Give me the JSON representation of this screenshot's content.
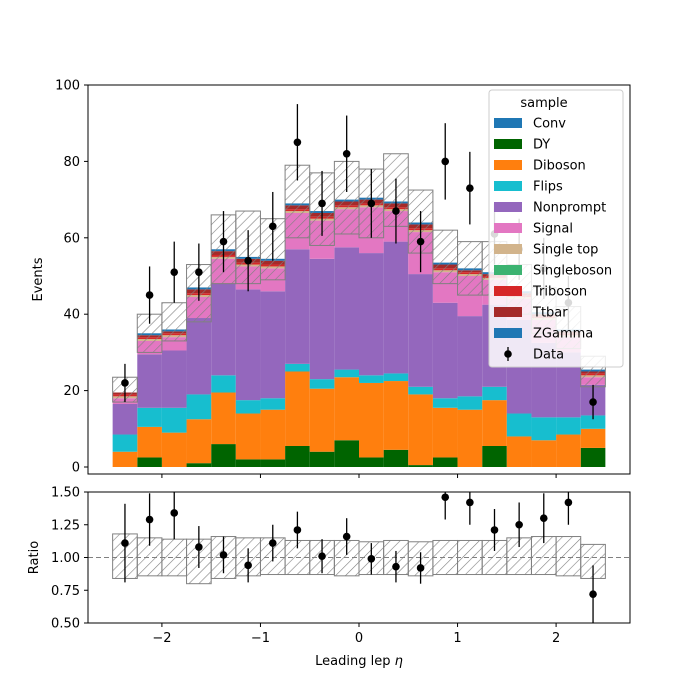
{
  "chart_data": [
    {
      "type": "stacked-histogram",
      "title": "",
      "xlabel": "Leading lep η",
      "ylabel": "Events",
      "xlim": [
        -2.75,
        2.75
      ],
      "ylim": [
        0,
        100
      ],
      "x_ticks": [
        -2,
        -1,
        0,
        1,
        2
      ],
      "y_ticks": [
        0,
        20,
        40,
        60,
        80,
        100
      ],
      "x_tick_labels": [
        "−2",
        "−1",
        "0",
        "1",
        "2"
      ],
      "y_tick_labels": [
        "0",
        "20",
        "40",
        "60",
        "80",
        "100"
      ],
      "bin_edges": [
        -2.5,
        -2.25,
        -2.0,
        -1.75,
        -1.5,
        -1.25,
        -1.0,
        -0.75,
        -0.5,
        -0.25,
        0.0,
        0.25,
        0.5,
        0.75,
        1.0,
        1.25,
        1.5,
        1.75,
        2.0,
        2.25,
        2.5
      ],
      "legend": {
        "title": "sample",
        "placement": "top-right"
      },
      "series": [
        {
          "name": "Conv",
          "color": "#1f77b4",
          "values": [
            0,
            0,
            0,
            0,
            0,
            0,
            0,
            0,
            0,
            0,
            0,
            0,
            0,
            0,
            0,
            0,
            0,
            0,
            0,
            0
          ]
        },
        {
          "name": "DY",
          "color": "#006400",
          "values": [
            0,
            2.5,
            0,
            1,
            6,
            2,
            2,
            5.5,
            4,
            7,
            2.5,
            4.5,
            0.5,
            2.5,
            0,
            5.5,
            0,
            0,
            0,
            5
          ]
        },
        {
          "name": "Diboson",
          "color": "#ff7f0e",
          "values": [
            4,
            8,
            9,
            11.5,
            13.5,
            12,
            13,
            19.5,
            16.5,
            16.5,
            19.5,
            18,
            18.5,
            13,
            15,
            12,
            8,
            7,
            8.5,
            5
          ]
        },
        {
          "name": "Flips",
          "color": "#17becf",
          "values": [
            4.5,
            5,
            6.5,
            6.5,
            4.5,
            3.5,
            3,
            2,
            2.5,
            2,
            2,
            2,
            2,
            2.5,
            3.5,
            3.5,
            6,
            6,
            4.5,
            3.5
          ]
        },
        {
          "name": "Nonprompt",
          "color": "#9467bd",
          "values": [
            8,
            14,
            15,
            20,
            24,
            29,
            28,
            30,
            31.5,
            32,
            32,
            34.5,
            29.5,
            25,
            21,
            21.5,
            24.5,
            19.5,
            17,
            8
          ]
        },
        {
          "name": "Signal",
          "color": "#e377c2",
          "values": [
            1.5,
            3.5,
            3.5,
            5.5,
            6.5,
            6,
            6,
            9.5,
            10,
            10,
            12,
            8,
            11,
            8,
            10.5,
            6.5,
            5.5,
            6,
            4,
            2
          ]
        },
        {
          "name": "Single top",
          "color": "#d2b48c",
          "values": [
            0.5,
            0.5,
            0.5,
            0.5,
            0.5,
            0.5,
            0.5,
            0.5,
            0.5,
            0.5,
            0.5,
            0.5,
            0.5,
            0.5,
            0.5,
            0.5,
            0.5,
            0.5,
            0.5,
            0.5
          ]
        },
        {
          "name": "Singleboson",
          "color": "#3cb371",
          "values": [
            0,
            0,
            0,
            0,
            0,
            0,
            0,
            0,
            0,
            0,
            0,
            0,
            0,
            0,
            0,
            0,
            0,
            0,
            0,
            0
          ]
        },
        {
          "name": "Triboson",
          "color": "#d62728",
          "values": [
            0.5,
            0.5,
            0.5,
            0.5,
            0.5,
            0.5,
            0.5,
            0.5,
            0.5,
            0.5,
            0.5,
            0.5,
            0.5,
            0.5,
            0.5,
            0.5,
            0.5,
            0.5,
            0.5,
            0.5
          ]
        },
        {
          "name": "Ttbar",
          "color": "#a52a2a",
          "values": [
            0.5,
            0.5,
            0.5,
            1,
            1,
            1,
            1,
            1,
            1,
            1,
            1,
            1,
            1,
            1,
            0.5,
            0.5,
            0.5,
            0.5,
            0.5,
            0.5
          ]
        },
        {
          "name": "ZGamma",
          "color": "#1f77b4",
          "values": [
            0,
            0.5,
            0.5,
            0.5,
            0.5,
            0.5,
            0.5,
            0.5,
            0.5,
            0.5,
            0.5,
            0.5,
            0.5,
            0.5,
            0.5,
            0.5,
            0.5,
            0.5,
            0.5,
            0.5
          ]
        }
      ],
      "mc_total": [
        20,
        35,
        38,
        47,
        57,
        55.5,
        56,
        70,
        67,
        71,
        70,
        72,
        65,
        55,
        52,
        51,
        46,
        40,
        36,
        25.5
      ],
      "uncertainty_band": {
        "hatch": "////",
        "low": [
          17,
          30,
          33,
          38,
          48,
          48,
          49,
          60,
          58,
          61,
          60,
          63,
          56,
          48,
          45,
          45,
          40,
          35,
          31,
          21
        ],
        "high": [
          23.5,
          40,
          43,
          53,
          66,
          67,
          65,
          79,
          77,
          80,
          78,
          82,
          72.5,
          62,
          59,
          59,
          53,
          47,
          42,
          29
        ]
      },
      "data": {
        "name": "Data",
        "color": "#000000",
        "x": [
          -2.375,
          -2.125,
          -1.875,
          -1.625,
          -1.375,
          -1.125,
          -0.875,
          -0.625,
          -0.375,
          -0.125,
          0.125,
          0.375,
          0.625,
          0.875,
          1.125,
          1.375,
          1.625,
          1.875,
          2.125,
          2.375
        ],
        "y": [
          22,
          45,
          51,
          51,
          59,
          54,
          63,
          85,
          69,
          82,
          69,
          67,
          59,
          80,
          73,
          61,
          57,
          52,
          43,
          17
        ],
        "err": [
          5,
          7.5,
          8,
          7.5,
          8,
          8,
          9,
          10,
          8.5,
          10,
          9,
          8.5,
          8,
          10,
          9.5,
          8,
          8,
          8,
          7,
          4.5
        ]
      }
    },
    {
      "type": "ratio",
      "title": "",
      "xlabel": "Leading lep η",
      "ylabel": "Ratio",
      "xlim": [
        -2.75,
        2.75
      ],
      "ylim": [
        0.5,
        1.5
      ],
      "x_ticks": [
        -2,
        -1,
        0,
        1,
        2
      ],
      "y_ticks": [
        0.5,
        0.75,
        1.0,
        1.25,
        1.5
      ],
      "x_tick_labels": [
        "−2",
        "−1",
        "0",
        "1",
        "2"
      ],
      "y_tick_labels": [
        "0.50",
        "0.75",
        "1.00",
        "1.25",
        "1.50"
      ],
      "reference_line": 1.0,
      "bin_edges": [
        -2.5,
        -2.25,
        -2.0,
        -1.75,
        -1.5,
        -1.25,
        -1.0,
        -0.75,
        -0.5,
        -0.25,
        0.0,
        0.25,
        0.5,
        0.75,
        1.0,
        1.25,
        1.5,
        1.75,
        2.0,
        2.25,
        2.5
      ],
      "uncertainty_band": {
        "low": [
          0.84,
          0.86,
          0.86,
          0.8,
          0.84,
          0.86,
          0.87,
          0.87,
          0.87,
          0.86,
          0.87,
          0.87,
          0.86,
          0.87,
          0.87,
          0.87,
          0.87,
          0.87,
          0.86,
          0.84
        ],
        "high": [
          1.18,
          1.15,
          1.14,
          1.14,
          1.16,
          1.15,
          1.15,
          1.13,
          1.13,
          1.13,
          1.12,
          1.13,
          1.12,
          1.13,
          1.13,
          1.13,
          1.15,
          1.16,
          1.16,
          1.1
        ]
      },
      "points": {
        "x": [
          -2.375,
          -2.125,
          -1.875,
          -1.625,
          -1.375,
          -1.125,
          -0.875,
          -0.625,
          -0.375,
          -0.125,
          0.125,
          0.375,
          0.625,
          0.875,
          1.125,
          1.375,
          1.625,
          1.875,
          2.125,
          2.375
        ],
        "y": [
          1.11,
          1.29,
          1.34,
          1.08,
          1.02,
          0.94,
          1.11,
          1.21,
          1.01,
          1.16,
          0.99,
          0.93,
          0.92,
          1.46,
          1.42,
          1.21,
          1.25,
          1.3,
          1.42,
          0.72
        ],
        "err": [
          0.3,
          0.2,
          0.2,
          0.16,
          0.14,
          0.13,
          0.14,
          0.14,
          0.13,
          0.14,
          0.12,
          0.12,
          0.12,
          0.17,
          0.17,
          0.16,
          0.17,
          0.19,
          0.17,
          0.22
        ]
      }
    }
  ]
}
